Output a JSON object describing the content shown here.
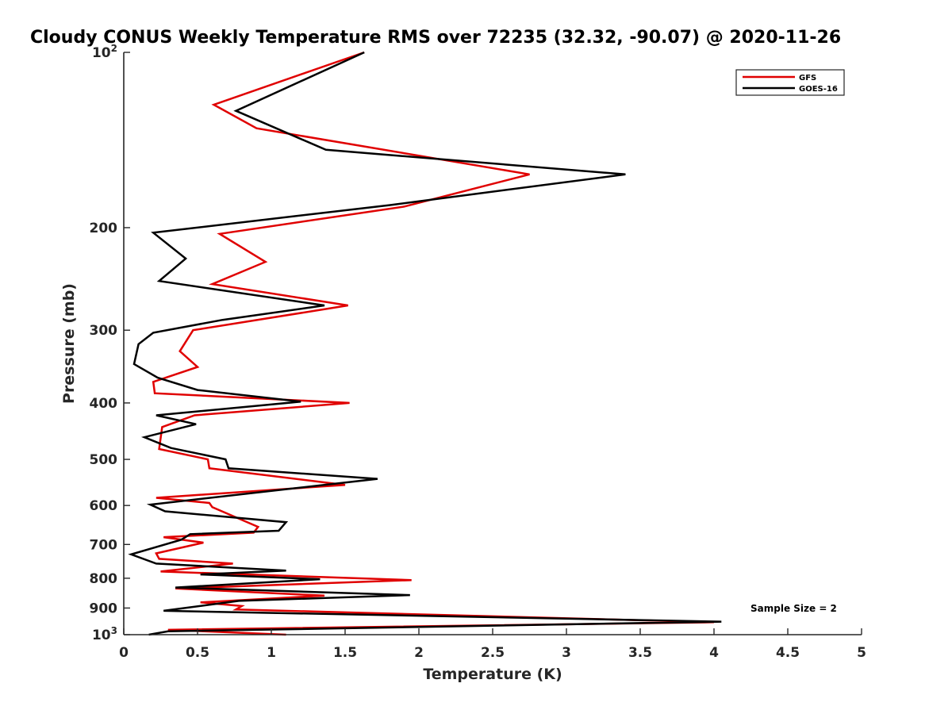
{
  "chart_data": {
    "type": "line",
    "title": "Cloudy CONUS Weekly Temperature RMS over 72235 (32.32, -90.07) @ 2020-11-26",
    "xlabel": "Temperature (K)",
    "ylabel": "Pressure (mb)",
    "xlim": [
      0,
      5
    ],
    "ylim": [
      100,
      1000
    ],
    "y_scale": "log",
    "y_reversed": true,
    "x_ticks": [
      "0",
      "0.5",
      "1",
      "1.5",
      "2",
      "2.5",
      "3",
      "3.5",
      "4",
      "4.5",
      "5"
    ],
    "y_ticks": [
      {
        "value": 100,
        "base": "10",
        "exp": "2"
      },
      {
        "value": 200,
        "label": "200"
      },
      {
        "value": 300,
        "label": "300"
      },
      {
        "value": 400,
        "label": "400"
      },
      {
        "value": 500,
        "label": "500"
      },
      {
        "value": 600,
        "label": "600"
      },
      {
        "value": 700,
        "label": "700"
      },
      {
        "value": 800,
        "label": "800"
      },
      {
        "value": 900,
        "label": "900"
      },
      {
        "value": 1000,
        "base": "10",
        "exp": "3"
      }
    ],
    "legend_position": "top-right",
    "annotation": "Sample Size = 2",
    "series": [
      {
        "name": "GFS",
        "color": "#e00000",
        "x": [
          1.63,
          0.61,
          0.9,
          2.75,
          1.9,
          0.65,
          0.96,
          0.6,
          1.52,
          0.47,
          0.38,
          0.5,
          0.2,
          0.21,
          1.53,
          0.48,
          0.26,
          0.24,
          0.57,
          0.58,
          1.5,
          0.22,
          0.58,
          0.6,
          0.91,
          0.88,
          0.27,
          0.54,
          0.22,
          0.24,
          0.74,
          0.25,
          1.95,
          0.35,
          1.36,
          0.52,
          0.8,
          0.76,
          4.0,
          0.3,
          1.1
        ],
        "y": [
          100,
          123,
          135,
          162,
          184,
          205,
          229,
          250,
          272,
          300,
          326,
          347,
          368,
          385,
          400,
          420,
          440,
          480,
          500,
          518,
          553,
          582,
          594,
          604,
          653,
          668,
          680,
          695,
          725,
          741,
          755,
          779,
          806,
          833,
          857,
          880,
          893,
          905,
          952,
          981,
          1000
        ]
      },
      {
        "name": "GOES-16",
        "color": "#000000",
        "x": [
          1.63,
          0.76,
          1.37,
          3.4,
          1.8,
          0.2,
          0.42,
          0.24,
          1.36,
          0.67,
          0.2,
          0.1,
          0.07,
          0.23,
          0.5,
          1.2,
          0.22,
          0.49,
          0.14,
          0.32,
          0.69,
          0.71,
          1.72,
          0.18,
          0.28,
          1.1,
          1.05,
          0.45,
          0.39,
          0.05,
          0.22,
          1.1,
          0.52,
          1.33,
          0.35,
          1.94,
          0.78,
          0.27,
          4.05,
          0.3,
          0.17
        ],
        "y": [
          100,
          126,
          147,
          162,
          183,
          204,
          226,
          247,
          272,
          288,
          303,
          317,
          343,
          362,
          380,
          398,
          420,
          435,
          458,
          478,
          500,
          518,
          540,
          598,
          614,
          641,
          663,
          672,
          687,
          728,
          755,
          776,
          788,
          803,
          830,
          855,
          875,
          910,
          950,
          987,
          1000
        ]
      }
    ]
  }
}
